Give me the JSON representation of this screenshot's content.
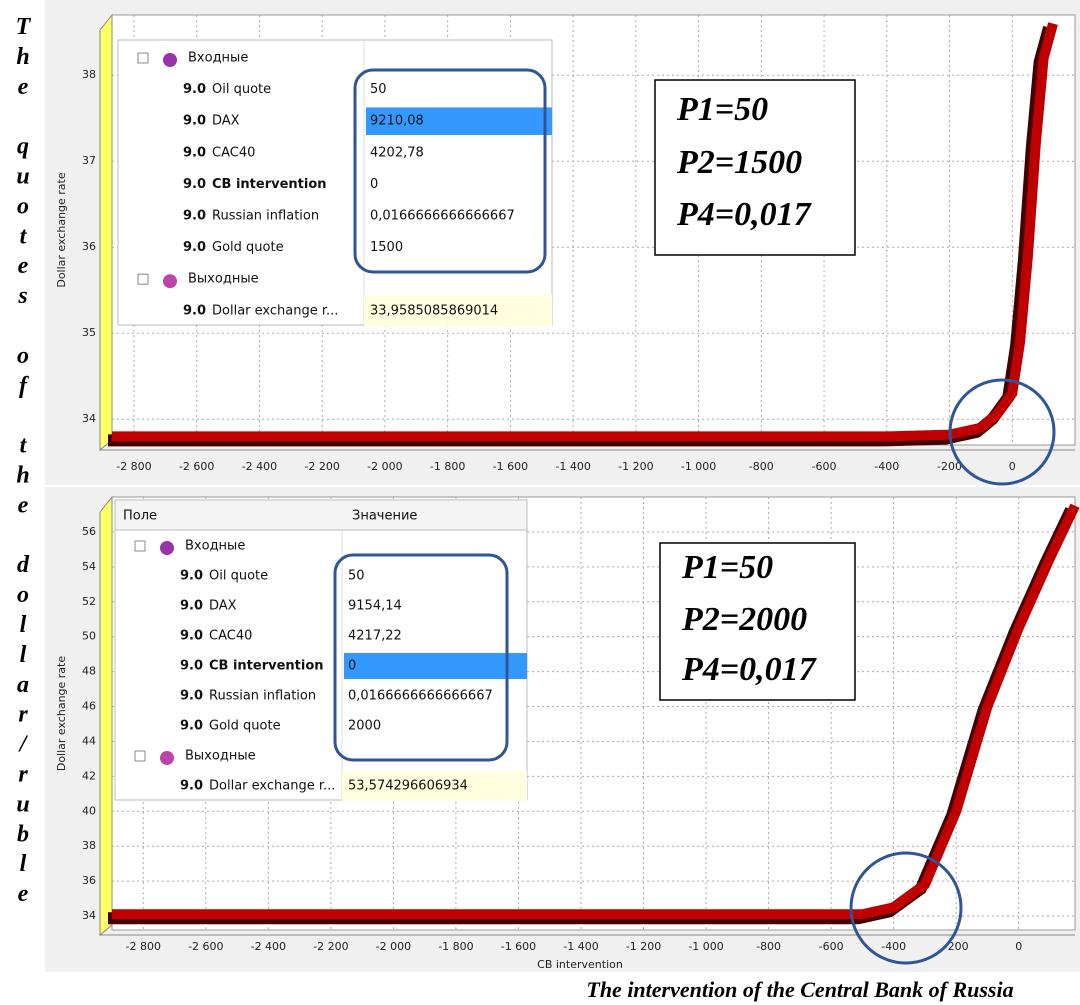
{
  "chart_data": [
    {
      "type": "line",
      "y_label": "Dollar exchange rate",
      "x": [
        -2870,
        -400,
        -200,
        -100,
        -50,
        0,
        25,
        50,
        75,
        100,
        130
      ],
      "values": [
        33.8,
        33.8,
        33.82,
        33.9,
        34.05,
        34.3,
        34.9,
        35.9,
        37.2,
        38.2,
        38.6
      ],
      "color": "#c00000",
      "xlim": [
        -2870,
        200
      ],
      "ylim": [
        33.7,
        38.7
      ],
      "xticks": [
        {
          "value": -2800,
          "label": "-2 800"
        },
        {
          "value": -2600,
          "label": "-2 600"
        },
        {
          "value": -2400,
          "label": "-2 400"
        },
        {
          "value": -2200,
          "label": "-2 200"
        },
        {
          "value": -2000,
          "label": "-2 000"
        },
        {
          "value": -1800,
          "label": "-1 800"
        },
        {
          "value": -1600,
          "label": "-1 600"
        },
        {
          "value": -1400,
          "label": "-1 400"
        },
        {
          "value": -1200,
          "label": "-1 200"
        },
        {
          "value": -1000,
          "label": "-1 000"
        },
        -800,
        -600,
        -400,
        -200,
        0
      ],
      "yticks": [
        34,
        35,
        36,
        37,
        38
      ],
      "grid": true
    },
    {
      "type": "line",
      "y_label": "Dollar exchange rate",
      "x_label": "CB intervention",
      "x": [
        -2900,
        -500,
        -400,
        -300,
        -200,
        -100,
        0,
        100,
        180
      ],
      "values": [
        34.1,
        34.1,
        34.5,
        35.8,
        40,
        46,
        50.5,
        54.5,
        57.5
      ],
      "color": "#c00000",
      "xlim": [
        -2900,
        180
      ],
      "ylim": [
        33.2,
        58
      ],
      "xticks": [
        {
          "value": -2800,
          "label": "-2 800"
        },
        {
          "value": -2600,
          "label": "-2 600"
        },
        {
          "value": -2400,
          "label": "-2 400"
        },
        {
          "value": -2200,
          "label": "-2 200"
        },
        {
          "value": -2000,
          "label": "-2 000"
        },
        {
          "value": -1800,
          "label": "-1 800"
        },
        {
          "value": -1600,
          "label": "-1 600"
        },
        {
          "value": -1400,
          "label": "-1 400"
        },
        {
          "value": -1200,
          "label": "-1 200"
        },
        {
          "value": -1000,
          "label": "-1 000"
        },
        -800,
        -600,
        -400,
        -200,
        0
      ],
      "yticks": [
        34,
        36,
        38,
        40,
        42,
        44,
        46,
        48,
        50,
        52,
        54,
        56
      ],
      "grid": true
    }
  ],
  "property_grids": [
    {
      "input_group": "Входные",
      "inputs": [
        {
          "type": "9.0",
          "name": "Oil quote",
          "value": "50"
        },
        {
          "type": "9.0",
          "name": "DAX",
          "value": "9210,08"
        },
        {
          "type": "9.0",
          "name": "CAC40",
          "value": "4202,78"
        },
        {
          "type": "9.0",
          "name": "CB intervention",
          "value": "0"
        },
        {
          "type": "9.0",
          "name": "Russian inflation",
          "value": "0,0166666666666667"
        },
        {
          "type": "9.0",
          "name": "Gold quote",
          "value": "1500"
        }
      ],
      "output_group": "Выходные",
      "outputs": [
        {
          "type": "9.0",
          "name": "Dollar exchange r...",
          "value": "33,9585085869014"
        }
      ]
    },
    {
      "columns": [
        "Поле",
        "Значение"
      ],
      "input_group": "Входные",
      "inputs": [
        {
          "type": "9.0",
          "name": "Oil quote",
          "value": "50"
        },
        {
          "type": "9.0",
          "name": "DAX",
          "value": "9154,14"
        },
        {
          "type": "9.0",
          "name": "CAC40",
          "value": "4217,22"
        },
        {
          "type": "9.0",
          "name": "CB intervention",
          "value": "0"
        },
        {
          "type": "9.0",
          "name": "Russian inflation",
          "value": "0,0166666666666667"
        },
        {
          "type": "9.0",
          "name": "Gold quote",
          "value": "2000"
        }
      ],
      "output_group": "Выходные",
      "outputs": [
        {
          "type": "9.0",
          "name": "Dollar exchange r...",
          "value": "53,574296606934"
        }
      ]
    }
  ],
  "parameter_boxes": [
    [
      "P1=50",
      "P2=1500",
      "P4=0,017"
    ],
    [
      "P1=50",
      "P2=2000",
      "P4=0,017"
    ]
  ],
  "caption_left": "The quotes of the dollar/ruble",
  "caption_bottom": "The intervention of the Central Bank of Russia"
}
